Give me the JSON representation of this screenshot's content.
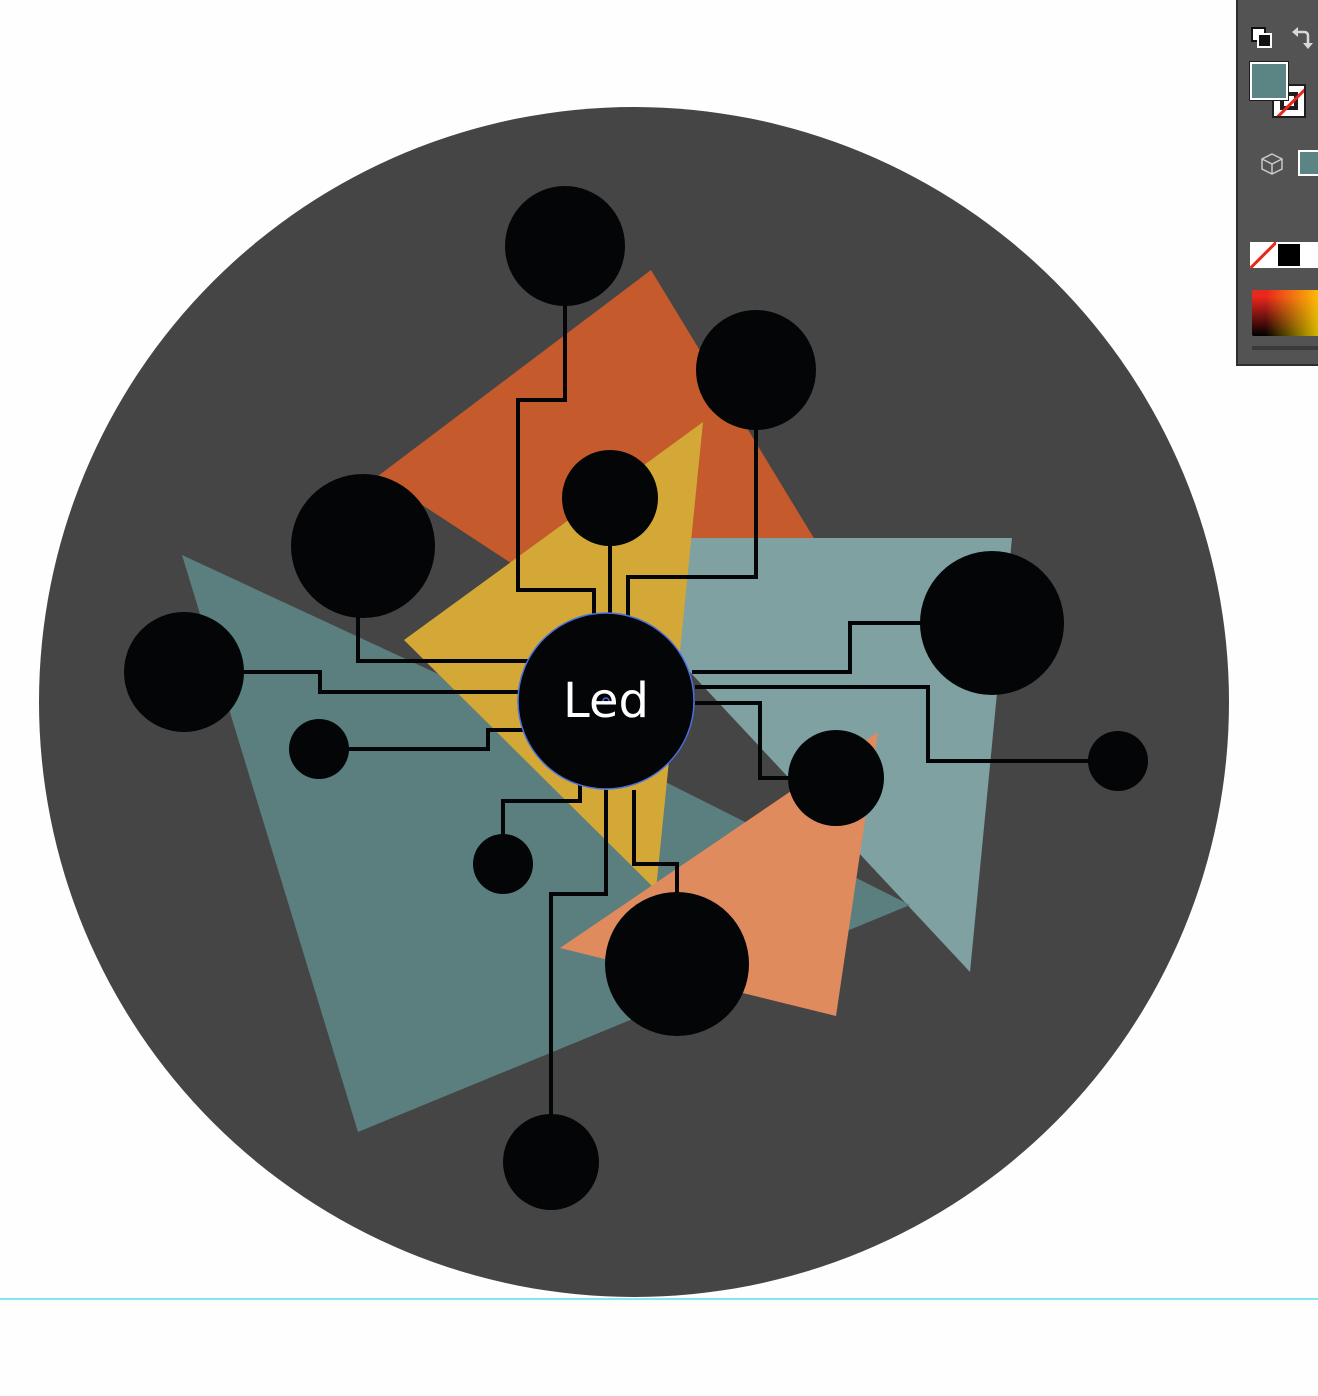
{
  "canvas": {
    "colors": {
      "page_bg": "#fefefe",
      "disk": "#454545",
      "teal_dark": "#5b7e7e",
      "teal_light": "#7fa1a1",
      "orange": "#c55a2c",
      "salmon": "#e08b5e",
      "mustard": "#d3a836",
      "node": "#040507",
      "wire": "#040507",
      "selection": "#4a6fe0",
      "guide": "#7fe9f0"
    },
    "center_node": {
      "label": "Led"
    }
  },
  "tools_panel": {
    "fill_color": "#5b8585",
    "stroke_color": "none",
    "panel_bg": "#535353",
    "swatches": {
      "none": "none",
      "black": "#000000",
      "white": "#ffffff",
      "gradient_start": "#e8271d",
      "gradient_end": "#ffd700"
    },
    "icons": [
      "swap-fill-stroke-icon",
      "reset-colors-icon",
      "cube-icon"
    ]
  }
}
